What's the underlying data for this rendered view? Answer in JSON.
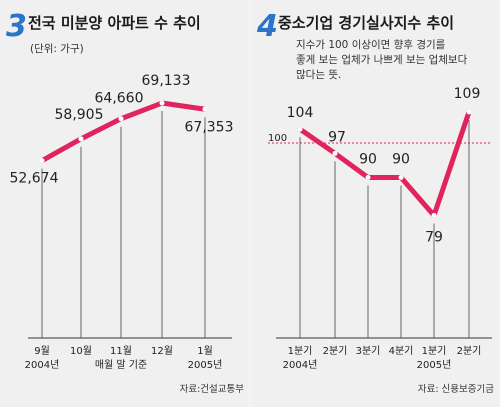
{
  "chart_data": [
    {
      "type": "line",
      "number": "3",
      "title": "전국 미분양 아파트 수 추이",
      "subtitle": "(단위: 가구)",
      "categories": [
        "9월",
        "10월",
        "11월",
        "12월",
        "1월"
      ],
      "sublabels": [
        "2004년",
        "",
        "매월 말 기준",
        "",
        "2005년"
      ],
      "values": [
        52674,
        58905,
        64660,
        69133,
        67353
      ],
      "value_labels": [
        "52,674",
        "58,905",
        "64,660",
        "69,133",
        "67,353"
      ],
      "source": "자료:건설교통부",
      "color": "#e0245e",
      "grid": false
    },
    {
      "type": "line",
      "number": "4",
      "title": "중소기업 경기실사지수 추이",
      "subtitle_lines": [
        "지수가 100 이상이면 향후 경기를",
        "좋게 보는 업체가 나쁘게 보는 업체보다",
        "많다는 뜻."
      ],
      "categories": [
        "1분기",
        "2분기",
        "3분기",
        "4분기",
        "1분기",
        "2분기"
      ],
      "sublabels": [
        "2004년",
        "",
        "",
        "",
        "2005년",
        ""
      ],
      "values": [
        104,
        97,
        90,
        90,
        79,
        109
      ],
      "value_labels": [
        "104",
        "97",
        "90",
        "90",
        "79",
        "109"
      ],
      "reference": {
        "value": 100,
        "label": "100",
        "color": "#e0245e"
      },
      "source": "자료: 신용보증기금",
      "color": "#e0245e",
      "grid": false
    }
  ]
}
